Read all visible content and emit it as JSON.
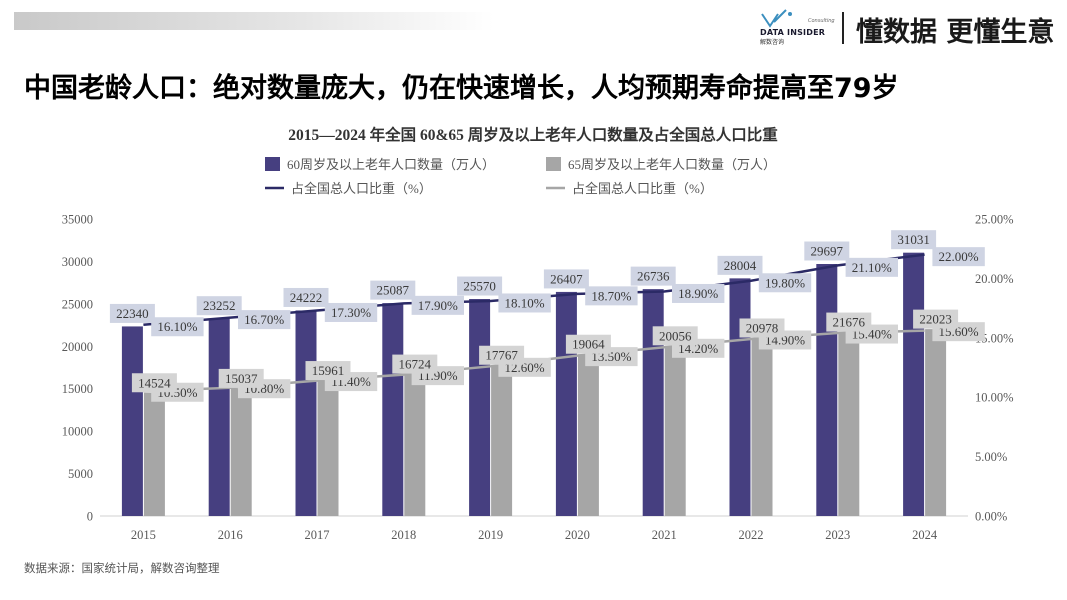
{
  "brand": {
    "logo_name": "DATA INSIDER",
    "logo_consulting": "Consulting",
    "logo_cn": "解数咨询",
    "slogan": "懂数据 更懂生意"
  },
  "headline": "中国老龄人口：绝对数量庞大，仍在快速增长，人均预期寿命提高至79岁",
  "source": "数据来源：国家统计局，解数咨询整理",
  "colors": {
    "bar60": "#463f80",
    "bar65": "#a6a6a6",
    "line60": "#2b2a66",
    "line65": "#a6a6a6",
    "label60_bg": "#cfd4e3",
    "label65_bg": "#d4d4d4"
  },
  "chart_data": {
    "type": "bar",
    "title": "2015—2024 年全国 60&65 周岁及以上老年人口数量及占全国总人口比重",
    "categories": [
      "2015",
      "2016",
      "2017",
      "2018",
      "2019",
      "2020",
      "2021",
      "2022",
      "2023",
      "2024"
    ],
    "series": [
      {
        "name": "60周岁及以上老年人口数量（万人）",
        "kind": "bar",
        "axis": "left",
        "values": [
          22340,
          23252,
          24222,
          25087,
          25570,
          26407,
          26736,
          28004,
          29697,
          31031
        ]
      },
      {
        "name": "65周岁及以上老年人口数量（万人）",
        "kind": "bar",
        "axis": "left",
        "values": [
          14524,
          15037,
          15961,
          16724,
          17767,
          19064,
          20056,
          20978,
          21676,
          22023
        ]
      },
      {
        "name": "占全国总人口比重（%）",
        "kind": "line",
        "axis": "right",
        "ref": "60",
        "values": [
          16.1,
          16.7,
          17.3,
          17.9,
          18.1,
          18.7,
          18.9,
          19.8,
          21.1,
          22.0
        ],
        "labels": [
          "16.10%",
          "16.70%",
          "17.30%",
          "17.90%",
          "18.10%",
          "18.70%",
          "18.90%",
          "19.80%",
          "21.10%",
          "22.00%"
        ]
      },
      {
        "name": "占全国总人口比重（%）",
        "kind": "line",
        "axis": "right",
        "ref": "65",
        "values": [
          10.5,
          10.8,
          11.4,
          11.9,
          12.6,
          13.5,
          14.2,
          14.9,
          15.4,
          15.6
        ],
        "labels": [
          "10.50%",
          "10.80%",
          "11.40%",
          "11.90%",
          "12.60%",
          "13.50%",
          "14.20%",
          "14.90%",
          "15.40%",
          "15.60%"
        ]
      }
    ],
    "ylim_left": [
      0,
      35000
    ],
    "yticks_left": [
      "0",
      "5000",
      "10000",
      "15000",
      "20000",
      "25000",
      "30000",
      "35000"
    ],
    "ylim_right": [
      0,
      25
    ],
    "yticks_right": [
      "0.00%",
      "5.00%",
      "10.00%",
      "15.00%",
      "20.00%",
      "25.00%"
    ],
    "legend_position": "top-center",
    "grid": false
  }
}
